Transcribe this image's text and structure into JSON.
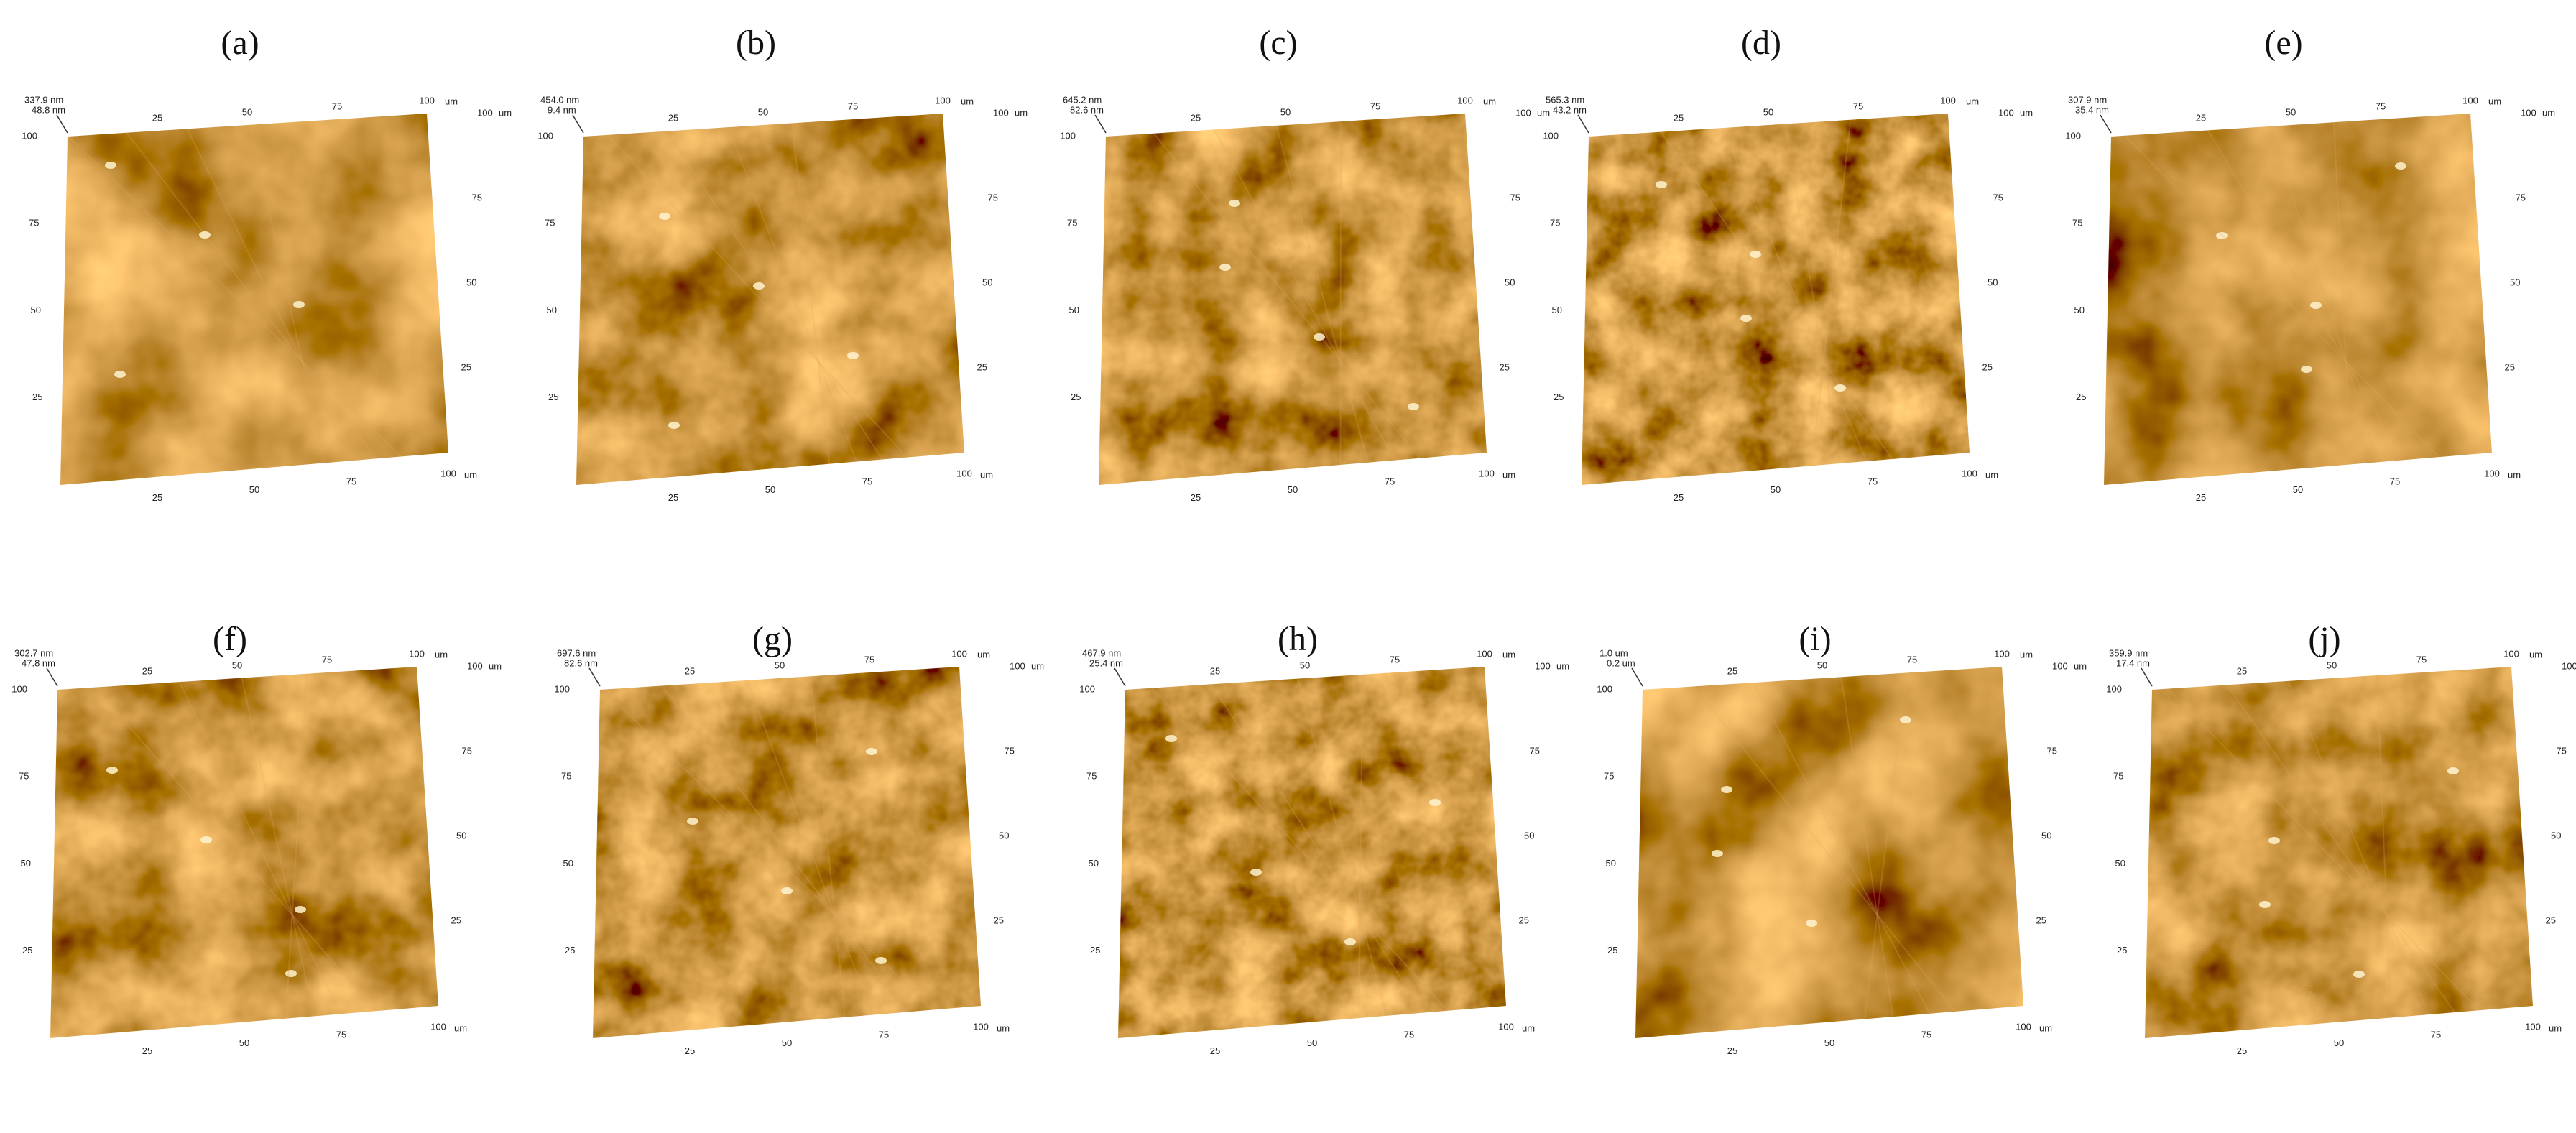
{
  "panels": [
    {
      "label": "(a)",
      "z_max": "337.9 nm",
      "z_min": "48.8 nm"
    },
    {
      "label": "(b)",
      "z_max": "454.0 nm",
      "z_min": "9.4 nm"
    },
    {
      "label": "(c)",
      "z_max": "645.2 nm",
      "z_min": "82.6 nm"
    },
    {
      "label": "(d)",
      "z_max": "565.3 nm",
      "z_min": "43.2 nm"
    },
    {
      "label": "(e)",
      "z_max": "307.9 nm",
      "z_min": "35.4 nm"
    },
    {
      "label": "(f)",
      "z_max": "302.7 nm",
      "z_min": "47.8 nm"
    },
    {
      "label": "(g)",
      "z_max": "697.6 nm",
      "z_min": "82.6 nm"
    },
    {
      "label": "(h)",
      "z_max": "467.9 nm",
      "z_min": "25.4 nm"
    },
    {
      "label": "(i)",
      "z_max": "1.0 um",
      "z_min": "0.2 um"
    },
    {
      "label": "(j)",
      "z_max": "359.9 nm",
      "z_min": "17.4 nm"
    }
  ],
  "axis_ticks": [
    "25",
    "50",
    "75",
    "100"
  ],
  "unit": "um"
}
